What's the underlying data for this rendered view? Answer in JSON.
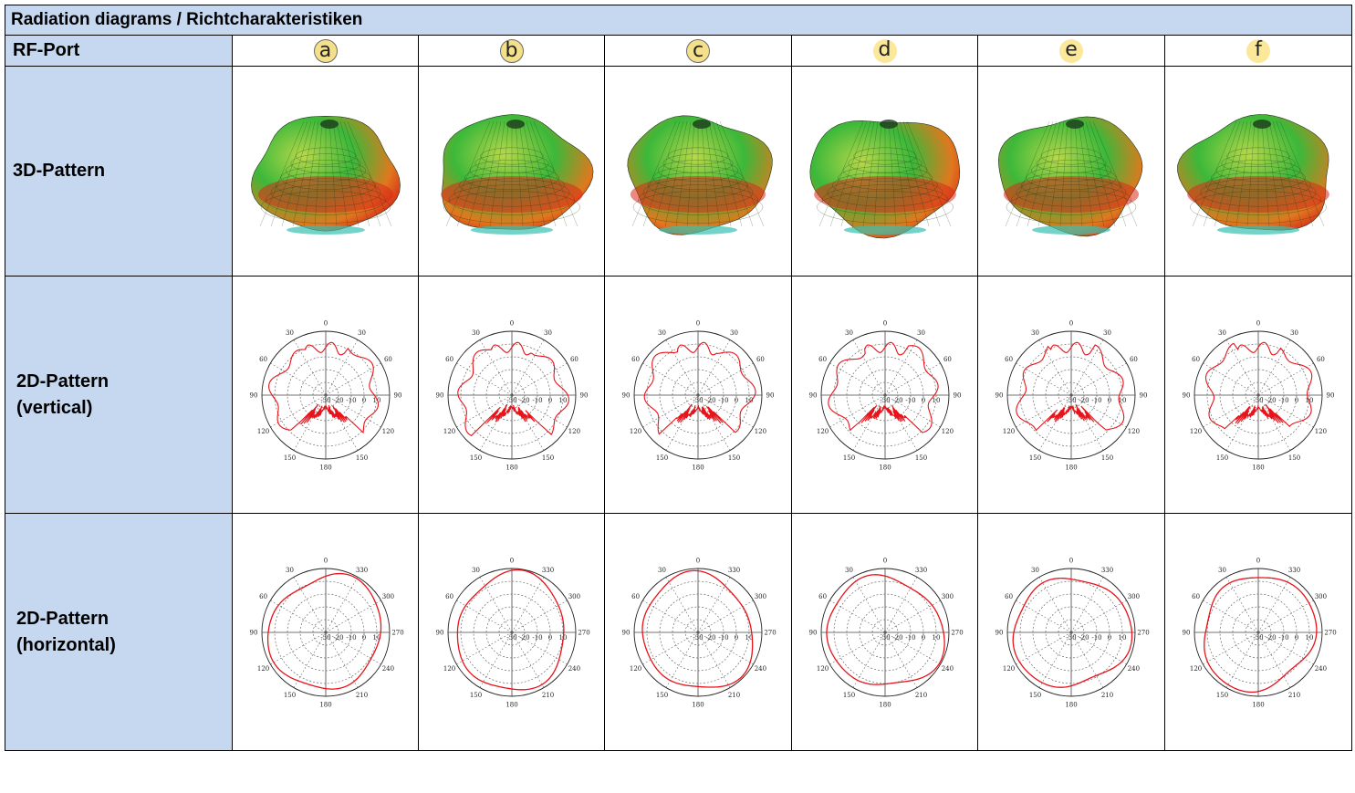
{
  "title": "Radiation diagrams / Richtcharakteristiken",
  "row_labels": {
    "port": "RF-Port",
    "pattern3d": "3D-Pattern",
    "vertical_line1": "2D-Pattern",
    "vertical_line2": "(vertical)",
    "horizontal_line1": "2D-Pattern",
    "horizontal_line2": "(horizontal)"
  },
  "ports": [
    "a",
    "b",
    "c",
    "d",
    "e",
    "f"
  ],
  "port_badge_styles": [
    "outlined",
    "outlined",
    "outlined",
    "plain",
    "plain",
    "plain"
  ],
  "colors": {
    "header_bg": "#c5d8f0",
    "pattern_line": "#e8121a",
    "badge_fill": "#f4e08a",
    "surface_red": "#d92a1a",
    "surface_green": "#3cb83a"
  },
  "vertical_scale": {
    "rings": [
      "-30",
      "-20",
      "-10",
      "0",
      "10"
    ],
    "angles": [
      "0",
      "30",
      "60",
      "90",
      "120",
      "150",
      "180",
      "150",
      "120",
      "90",
      "60",
      "30"
    ]
  },
  "horizontal_scale": {
    "rings": [
      "-30",
      "-20",
      "-10",
      "0",
      "10"
    ],
    "angles": [
      "0",
      "330",
      "300",
      "270",
      "240",
      "210",
      "180",
      "150",
      "120",
      "90",
      "60",
      "30"
    ]
  }
}
